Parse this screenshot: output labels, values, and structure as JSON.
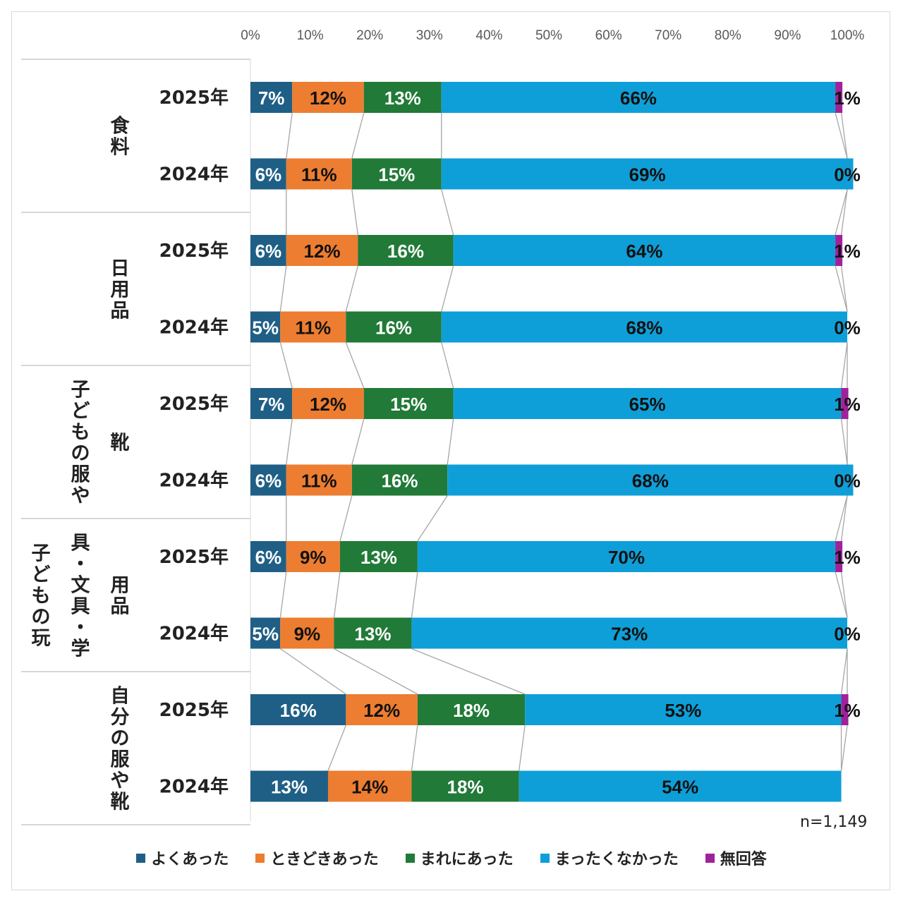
{
  "chart_data": {
    "type": "bar",
    "orientation": "horizontal",
    "stacked": "percent",
    "x_ticks": [
      "0%",
      "10%",
      "20%",
      "30%",
      "40%",
      "50%",
      "60%",
      "70%",
      "80%",
      "90%",
      "100%"
    ],
    "xlim": [
      0,
      100
    ],
    "note": "n=1,149",
    "groups": [
      {
        "label": "食料",
        "rows": [
          {
            "year": "2025年",
            "values": [
              7,
              12,
              13,
              66,
              1
            ]
          },
          {
            "year": "2024年",
            "values": [
              6,
              11,
              15,
              69,
              0
            ]
          }
        ]
      },
      {
        "label": "日用品",
        "rows": [
          {
            "year": "2025年",
            "values": [
              6,
              12,
              16,
              64,
              1
            ]
          },
          {
            "year": "2024年",
            "values": [
              5,
              11,
              16,
              68,
              0
            ]
          }
        ]
      },
      {
        "label": "子どもの服や靴",
        "rows": [
          {
            "year": "2025年",
            "values": [
              7,
              12,
              15,
              65,
              1
            ]
          },
          {
            "year": "2024年",
            "values": [
              6,
              11,
              16,
              68,
              0
            ]
          }
        ]
      },
      {
        "label": "子どもの玩具・文具・学用品",
        "rows": [
          {
            "year": "2025年",
            "values": [
              6,
              9,
              13,
              70,
              1
            ]
          },
          {
            "year": "2024年",
            "values": [
              5,
              9,
              13,
              73,
              0
            ]
          }
        ]
      },
      {
        "label": "自分の服や靴",
        "rows": [
          {
            "year": "2025年",
            "values": [
              16,
              12,
              18,
              53,
              1
            ]
          },
          {
            "year": "2024年",
            "values": [
              13,
              14,
              18,
              54,
              null
            ]
          }
        ]
      }
    ],
    "series": [
      {
        "name": "よくあった",
        "color": "#1f5f86"
      },
      {
        "name": "ときどきあった",
        "color": "#ed7d31"
      },
      {
        "name": "まれにあった",
        "color": "#217a37"
      },
      {
        "name": "まったくなかった",
        "color": "#0f9fd8"
      },
      {
        "name": "無回答",
        "color": "#a0229b"
      }
    ],
    "legend": "bottom",
    "grid": true,
    "series_lines": true
  }
}
